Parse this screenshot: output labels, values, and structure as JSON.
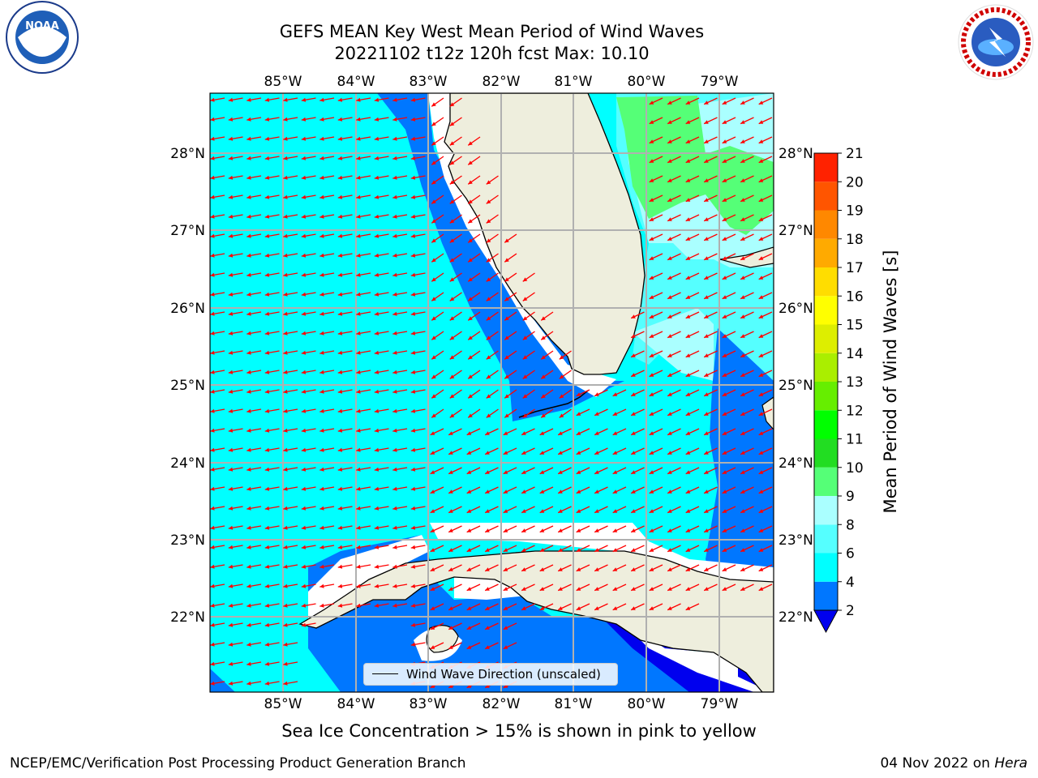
{
  "header": {
    "title_line1": "GEFS MEAN Key West Mean Period of Wind Waves",
    "title_line2": "20221102 t12z 120h fcst   Max: 10.10"
  },
  "logos": {
    "left": "noaa-logo",
    "right": "national-weather-service-logo"
  },
  "map": {
    "lon_ticks": [
      "85°W",
      "84°W",
      "83°W",
      "82°W",
      "81°W",
      "80°W",
      "79°W"
    ],
    "lat_ticks": [
      "28°N",
      "27°N",
      "26°N",
      "25°N",
      "24°N",
      "23°N",
      "22°N"
    ],
    "colors": {
      "ocean_fill_level_4_6": "#00ffff",
      "fill_level_6_8": "#55ffff",
      "fill_level_8_9": "#aaffff",
      "fill_level_9_10": "#55ff77",
      "fill_level_2_4": "#0077ff",
      "land": "#eeeedd",
      "arrows": "#ff0000",
      "grid": "#b0b0b0"
    }
  },
  "legend": {
    "label": "Wind Wave Direction (unscaled)"
  },
  "colorbar": {
    "label": "Mean Period of Wind Waves [s]",
    "tick_labels": [
      "2",
      "4",
      "6",
      "8",
      "9",
      "10",
      "11",
      "12",
      "13",
      "14",
      "15",
      "16",
      "17",
      "18",
      "19",
      "20",
      "21"
    ],
    "levels": [
      2,
      4,
      6,
      8,
      9,
      10,
      11,
      12,
      13,
      14,
      15,
      16,
      17,
      18,
      19,
      20,
      21
    ],
    "colors": [
      "#0077ff",
      "#00ffff",
      "#55ffff",
      "#aaffff",
      "#55ff77",
      "#22dd22",
      "#00ff00",
      "#66ee00",
      "#aaee00",
      "#ddee00",
      "#ffff00",
      "#ffdd00",
      "#ffaa00",
      "#ff8800",
      "#ff5500",
      "#ff2200"
    ],
    "under_color": "#0000ee"
  },
  "footnote": "Sea Ice Concentration > 15% is shown in pink to yellow",
  "footer": {
    "left": "NCEP/EMC/Verification Post Processing Product Generation Branch",
    "right_date": "04 Nov 2022 on ",
    "right_host": "Hera"
  }
}
